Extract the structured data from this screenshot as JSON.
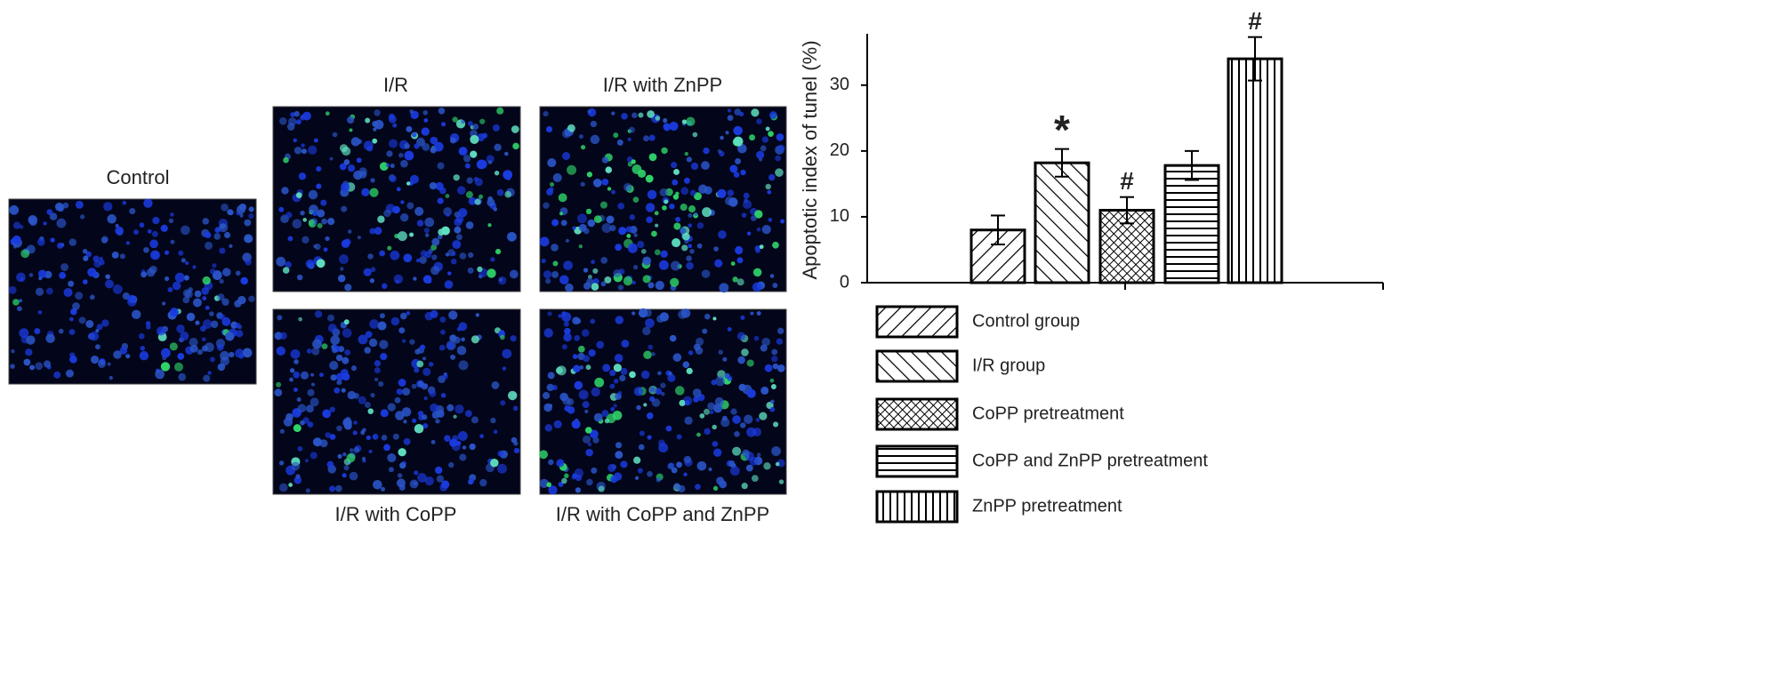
{
  "panels": {
    "labels": [
      "Control",
      "I/R",
      "I/R with ZnPP",
      "I/R with CoPP",
      "I/R with CoPP and ZnPP"
    ]
  },
  "chart_data": {
    "type": "bar",
    "y_label": "Apoptotic index of tunel (%)",
    "categories": [
      "Control group",
      "I/R group",
      "CoPP pretreatment",
      "CoPP and ZnPP pretreatment",
      "ZnPP pretreatment"
    ],
    "values": [
      8,
      18.2,
      11,
      17.8,
      34
    ],
    "errors": [
      2.2,
      2.1,
      2,
      2.2,
      3.3
    ],
    "annotations": [
      null,
      "*",
      "#",
      null,
      "#"
    ],
    "hatch": [
      "diag-up",
      "diag-down",
      "cross",
      "horizontal",
      "vertical"
    ],
    "color": "#000000",
    "ylim": [
      0,
      37.8
    ],
    "yticks": [
      0,
      10,
      20,
      30
    ]
  }
}
